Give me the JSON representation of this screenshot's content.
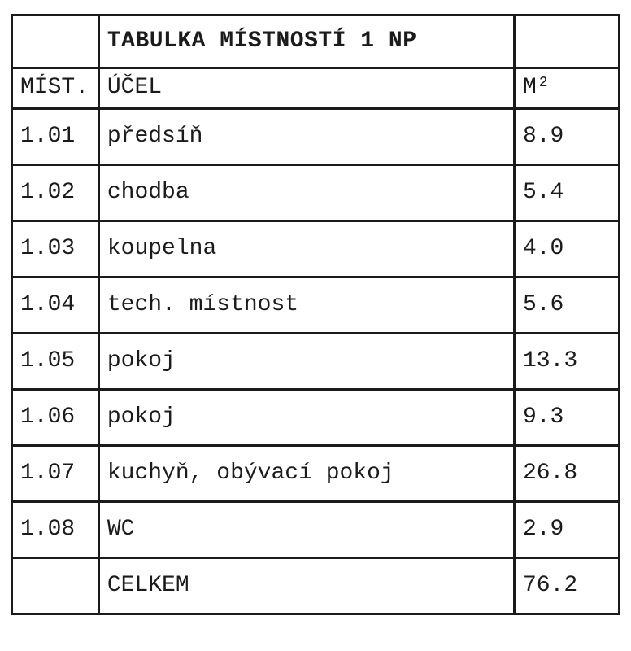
{
  "table": {
    "title": "TABULKA MÍSTNOSTÍ 1 NP",
    "columns": {
      "id": "MÍST.",
      "purpose": "ÚČEL",
      "area": "M²"
    },
    "rows": [
      {
        "id": "1.01",
        "purpose": "předsíň",
        "area": "8.9"
      },
      {
        "id": "1.02",
        "purpose": "chodba",
        "area": "5.4"
      },
      {
        "id": "1.03",
        "purpose": "koupelna",
        "area": "4.0"
      },
      {
        "id": "1.04",
        "purpose": "tech. místnost",
        "area": "5.6"
      },
      {
        "id": "1.05",
        "purpose": "pokoj",
        "area": "13.3"
      },
      {
        "id": "1.06",
        "purpose": "pokoj",
        "area": "9.3"
      },
      {
        "id": "1.07",
        "purpose": "kuchyň, obývací pokoj",
        "area": "26.8"
      },
      {
        "id": "1.08",
        "purpose": "WC",
        "area": "2.9"
      }
    ],
    "total": {
      "label": "CELKEM",
      "area": "76.2"
    }
  },
  "colors": {
    "border": "#1b1b1b",
    "text": "#1b1b1b",
    "background": "#ffffff"
  }
}
